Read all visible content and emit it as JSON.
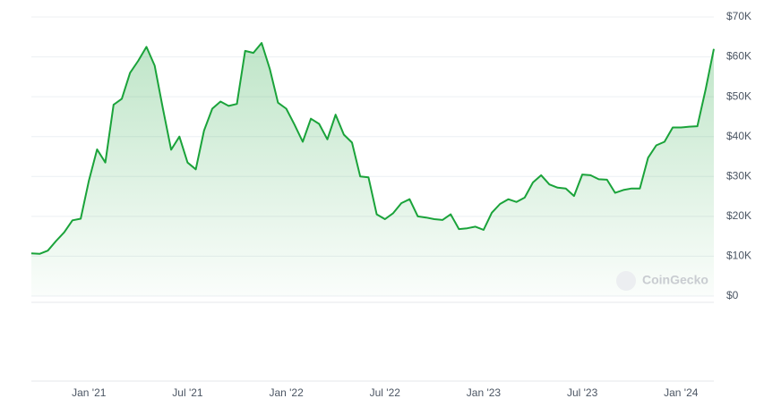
{
  "chart_data": {
    "type": "area",
    "categories": [
      null,
      null,
      null,
      null,
      null,
      null,
      null,
      "Jan '21",
      null,
      null,
      null,
      null,
      null,
      null,
      null,
      null,
      null,
      null,
      null,
      "Jul '21",
      null,
      null,
      null,
      null,
      null,
      null,
      null,
      null,
      null,
      null,
      null,
      "Jan '22",
      null,
      null,
      null,
      null,
      null,
      null,
      null,
      null,
      null,
      null,
      null,
      "Jul '22",
      null,
      null,
      null,
      null,
      null,
      null,
      null,
      null,
      null,
      null,
      null,
      "Jan '23",
      null,
      null,
      null,
      null,
      null,
      null,
      null,
      null,
      null,
      null,
      null,
      "Jul '23",
      null,
      null,
      null,
      null,
      null,
      null,
      null,
      null,
      null,
      null,
      null,
      "Jan '24",
      null,
      null,
      null,
      null
    ],
    "series": [
      {
        "color": "#1aa33a",
        "values": [
          10700,
          10600,
          11400,
          13800,
          16000,
          19000,
          19400,
          29000,
          36800,
          33500,
          48000,
          49500,
          56000,
          59000,
          62500,
          57800,
          47000,
          36700,
          40000,
          33500,
          31800,
          41500,
          47000,
          48800,
          47700,
          48200,
          61500,
          61000,
          63500,
          57000,
          48500,
          47000,
          43000,
          38700,
          44500,
          43200,
          39300,
          45500,
          40500,
          38500,
          30000,
          29800,
          20500,
          19300,
          20800,
          23300,
          24300,
          20000,
          19700,
          19300,
          19100,
          20500,
          16800,
          17000,
          17400,
          16600,
          20900,
          23100,
          24300,
          23600,
          24700,
          28500,
          30300,
          28000,
          27200,
          27000,
          25100,
          30500,
          30300,
          29300,
          29200,
          25900,
          26600,
          27000,
          27000,
          34700,
          37800,
          38700,
          42300,
          42300,
          42500,
          42600,
          51800,
          62000
        ]
      }
    ],
    "ylim": [
      0,
      70000
    ],
    "yticks": [
      {
        "value": 0,
        "label": "$0"
      },
      {
        "value": 10000,
        "label": "$10K"
      },
      {
        "value": 20000,
        "label": "$20K"
      },
      {
        "value": 30000,
        "label": "$30K"
      },
      {
        "value": 40000,
        "label": "$40K"
      },
      {
        "value": 50000,
        "label": "$50K"
      },
      {
        "value": 60000,
        "label": "$60K"
      },
      {
        "value": 70000,
        "label": "$70K"
      }
    ],
    "grid": true,
    "watermark": "CoinGecko"
  }
}
